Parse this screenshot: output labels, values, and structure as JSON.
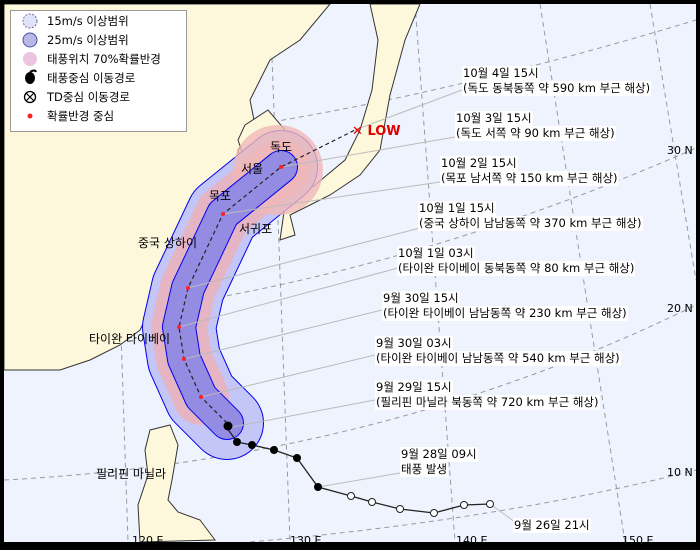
{
  "legend": {
    "items": [
      {
        "label": "15m/s 이상범위",
        "icon": "dashed-circle-icon",
        "color": "#dcdcf4"
      },
      {
        "label": "25m/s 이상범위",
        "icon": "solid-circle-icon",
        "color": "#b9b6e8"
      },
      {
        "label": "태풍위치 70%확률반경",
        "icon": "pink-circle-icon",
        "color": "#ecc4e0"
      },
      {
        "label": "태풍중심 이동경로",
        "icon": "typhoon-icon",
        "color": "#000000"
      },
      {
        "label": "TD중심 이동경로",
        "icon": "td-cross-circle-icon",
        "color": "#000000"
      },
      {
        "label": "확률반경 중심",
        "icon": "red-dot-icon",
        "color": "#ff2020"
      }
    ]
  },
  "low_label": "LOW",
  "places": [
    "독도",
    "서울",
    "목포",
    "서귀포",
    "중국 상하이",
    "타이완 타이베이",
    "필리핀 마닐라"
  ],
  "forecast_labels": [
    {
      "time": "10월 4일 15시",
      "desc": "(독도 동북동쪽 약 590 km 부근 해상)"
    },
    {
      "time": "10월 3일 15시",
      "desc": "(독도 서쪽 약 90 km 부근 해상)"
    },
    {
      "time": "10월 2일 15시",
      "desc": "(목포 남서쪽 약 150 km 부근 해상)"
    },
    {
      "time": "10월 1일 15시",
      "desc": "(중국 상하이 남남동쪽 약 370 km 부근 해상)"
    },
    {
      "time": "10월 1일 03시",
      "desc": "(타이완 타이베이 동북동쪽 약 80 km 부근 해상)"
    },
    {
      "time": "9월 30일 15시",
      "desc": "(타이완 타이베이 남남동쪽 약 230 km 부근 해상)"
    },
    {
      "time": "9월 30일 03시",
      "desc": "(타이완 타이베이 남남동쪽 약 540 km 부근 해상)"
    },
    {
      "time": "9월 29일 15시",
      "desc": "(필리핀 마닐라 북동쪽 약 720 km 부근 해상)"
    },
    {
      "time": "9월 28일 09시",
      "desc": "태풍 발생"
    },
    {
      "time": "9월 26일 21시",
      "desc": ""
    }
  ],
  "lat_ticks": [
    "30 N",
    "20 N",
    "10 N"
  ],
  "lon_ticks": [
    "120 E",
    "130 E",
    "140 E",
    "150 E"
  ],
  "colors": {
    "sea": "#eef3fd",
    "land": "#fdf8dc",
    "cone15": "#c3c6f6",
    "cone25": "#9c94e2",
    "prob70": "#eeb0b8",
    "outline": "#0000ee",
    "center": "#ff2020"
  }
}
